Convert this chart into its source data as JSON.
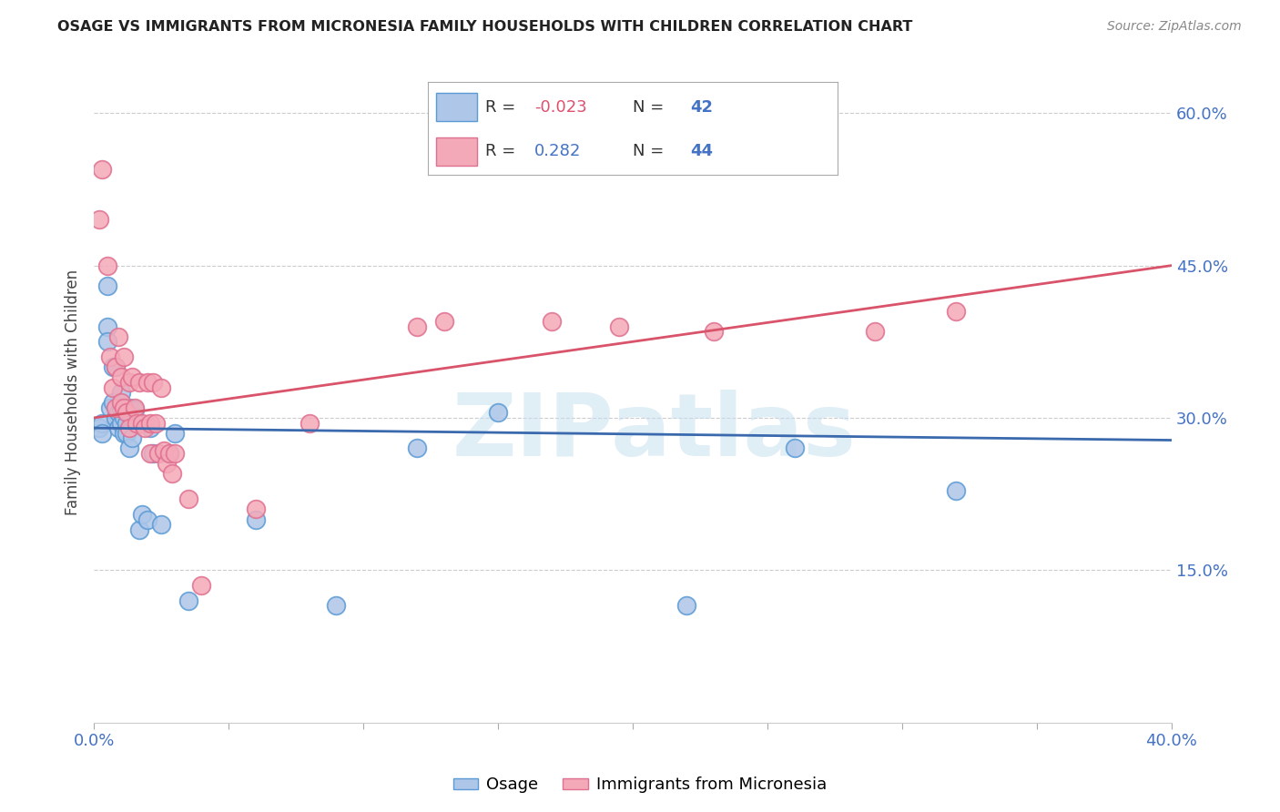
{
  "title": "OSAGE VS IMMIGRANTS FROM MICRONESIA FAMILY HOUSEHOLDS WITH CHILDREN CORRELATION CHART",
  "source": "Source: ZipAtlas.com",
  "ylabel": "Family Households with Children",
  "xlabel_label_osage": "Osage",
  "xlabel_label_micronesia": "Immigrants from Micronesia",
  "x_min": 0.0,
  "x_max": 0.4,
  "y_min": 0.0,
  "y_max": 0.65,
  "x_ticks": [
    0.0,
    0.05,
    0.1,
    0.15,
    0.2,
    0.25,
    0.3,
    0.35,
    0.4
  ],
  "x_tick_labels": [
    "0.0%",
    "",
    "",
    "",
    "",
    "",
    "",
    "",
    "40.0%"
  ],
  "y_ticks": [
    0.0,
    0.15,
    0.3,
    0.45,
    0.6
  ],
  "y_tick_labels": [
    "",
    "15.0%",
    "30.0%",
    "45.0%",
    "60.0%"
  ],
  "background_color": "#ffffff",
  "grid_color": "#cccccc",
  "osage_color": "#aec6e8",
  "micronesia_color": "#f4a9b8",
  "osage_edge_color": "#5b9bd5",
  "micronesia_edge_color": "#e07090",
  "line_osage_color": "#3a6aad",
  "line_micronesia_color": "#d9536a",
  "legend_R_osage": "-0.023",
  "legend_N_osage": "42",
  "legend_R_micronesia": "0.282",
  "legend_N_micronesia": "44",
  "watermark": "ZIPatlas",
  "osage_line_x0": 0.0,
  "osage_line_y0": 0.29,
  "osage_line_x1": 0.4,
  "osage_line_y1": 0.278,
  "micro_line_x0": 0.0,
  "micro_line_y0": 0.3,
  "micro_line_x1": 0.4,
  "micro_line_y1": 0.45,
  "osage_x": [
    0.002,
    0.003,
    0.003,
    0.005,
    0.005,
    0.005,
    0.006,
    0.007,
    0.007,
    0.008,
    0.008,
    0.009,
    0.009,
    0.01,
    0.01,
    0.01,
    0.011,
    0.011,
    0.012,
    0.012,
    0.013,
    0.013,
    0.014,
    0.014,
    0.015,
    0.016,
    0.017,
    0.018,
    0.02,
    0.021,
    0.022,
    0.025,
    0.028,
    0.03,
    0.035,
    0.06,
    0.09,
    0.12,
    0.15,
    0.22,
    0.26,
    0.32
  ],
  "osage_y": [
    0.29,
    0.295,
    0.285,
    0.43,
    0.39,
    0.375,
    0.31,
    0.35,
    0.315,
    0.3,
    0.35,
    0.305,
    0.29,
    0.325,
    0.31,
    0.295,
    0.3,
    0.285,
    0.295,
    0.285,
    0.31,
    0.27,
    0.3,
    0.28,
    0.308,
    0.295,
    0.19,
    0.205,
    0.2,
    0.29,
    0.265,
    0.195,
    0.265,
    0.285,
    0.12,
    0.2,
    0.115,
    0.27,
    0.305,
    0.115,
    0.27,
    0.228
  ],
  "micronesia_x": [
    0.002,
    0.003,
    0.005,
    0.006,
    0.007,
    0.008,
    0.008,
    0.009,
    0.01,
    0.01,
    0.011,
    0.011,
    0.012,
    0.013,
    0.013,
    0.014,
    0.015,
    0.016,
    0.017,
    0.018,
    0.019,
    0.02,
    0.021,
    0.021,
    0.022,
    0.023,
    0.024,
    0.025,
    0.026,
    0.027,
    0.028,
    0.029,
    0.03,
    0.035,
    0.04,
    0.06,
    0.08,
    0.12,
    0.13,
    0.17,
    0.195,
    0.23,
    0.29,
    0.32
  ],
  "micronesia_y": [
    0.495,
    0.545,
    0.45,
    0.36,
    0.33,
    0.35,
    0.31,
    0.38,
    0.34,
    0.315,
    0.36,
    0.31,
    0.305,
    0.335,
    0.29,
    0.34,
    0.31,
    0.295,
    0.335,
    0.295,
    0.29,
    0.335,
    0.295,
    0.265,
    0.335,
    0.295,
    0.265,
    0.33,
    0.268,
    0.255,
    0.265,
    0.245,
    0.265,
    0.22,
    0.135,
    0.21,
    0.295,
    0.39,
    0.395,
    0.395,
    0.39,
    0.385,
    0.385,
    0.405
  ]
}
